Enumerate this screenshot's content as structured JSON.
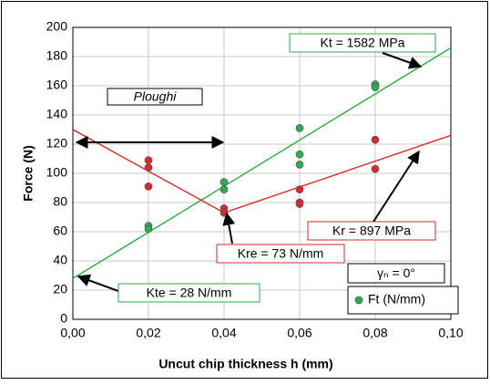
{
  "chart_data": {
    "type": "scatter",
    "xlabel": "Uncut chip thickness h (mm)",
    "ylabel": "Force (N)",
    "xlim": [
      0,
      0.1
    ],
    "ylim": [
      0,
      200
    ],
    "xticks": [
      {
        "value": 0,
        "label": "0,00"
      },
      {
        "value": 0.02,
        "label": "0,02"
      },
      {
        "value": 0.04,
        "label": "0,04"
      },
      {
        "value": 0.06,
        "label": "0,06"
      },
      {
        "value": 0.08,
        "label": "0,08"
      },
      {
        "value": 0.1,
        "label": "0,10"
      }
    ],
    "yticks": [
      0,
      20,
      40,
      60,
      80,
      100,
      120,
      140,
      160,
      180,
      200
    ],
    "grid": true,
    "legend": "lower right",
    "series": [
      {
        "color": "#d62a2a",
        "x": [
          0.02,
          0.02,
          0.02,
          0.04,
          0.04,
          0.06,
          0.06,
          0.06,
          0.08,
          0.08
        ],
        "values": [
          109,
          104,
          91,
          76,
          73,
          89,
          80,
          79,
          123,
          103
        ]
      },
      {
        "name": "Ft (N/mm)",
        "color": "#2eab4e",
        "x": [
          0.02,
          0.02,
          0.04,
          0.04,
          0.06,
          0.06,
          0.06,
          0.08,
          0.08
        ],
        "values": [
          64,
          62,
          94,
          89,
          131,
          113,
          106,
          161,
          159
        ]
      }
    ],
    "lines": [
      {
        "color": "#1aa832",
        "x": [
          0,
          0.1
        ],
        "values": [
          28,
          186
        ]
      },
      {
        "color": "#e01b1b",
        "x": [
          0,
          0.04,
          0.1
        ],
        "values": [
          130,
          73,
          126
        ]
      }
    ],
    "annotations": [
      "Kt = 1582 MPa",
      "Ploughi",
      "Kr = 897 MPa",
      "Kre = 73 N/mm",
      "Kte = 28 N/mm",
      "γₙ = 0°"
    ]
  }
}
